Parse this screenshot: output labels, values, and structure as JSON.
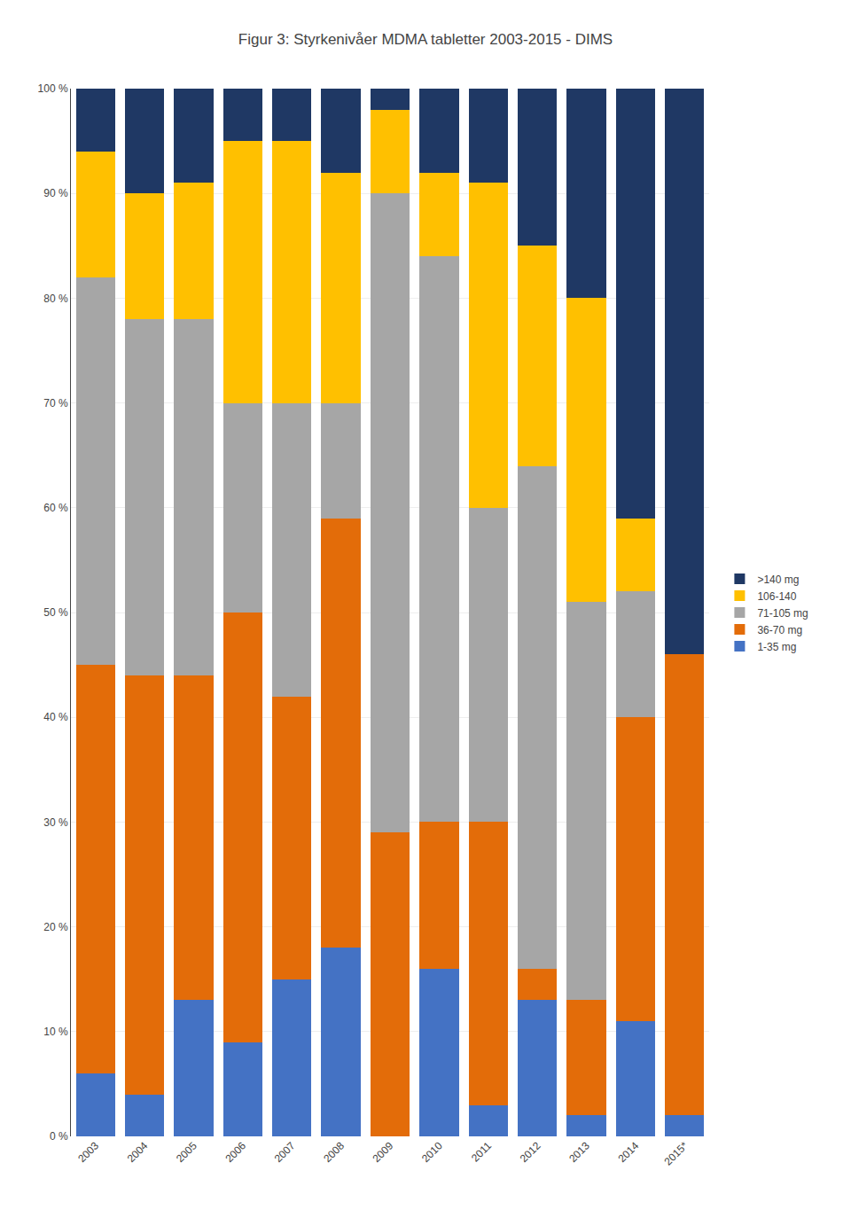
{
  "chart_data": {
    "type": "bar",
    "title": "Figur 3: Styrkenivåer MDMA tabletter 2003-2015 - DIMS",
    "categories": [
      "2003",
      "2004",
      "2005",
      "2006",
      "2007",
      "2008",
      "2009",
      "2010",
      "2011",
      "2012",
      "2013",
      "2014",
      "2015*"
    ],
    "series": [
      {
        "name": "1-35 mg",
        "color": "#4472c4",
        "values": [
          6,
          4,
          13,
          9,
          15,
          18,
          0,
          16,
          3,
          13,
          2,
          11,
          2
        ]
      },
      {
        "name": "36-70 mg",
        "color": "#e36c09",
        "values": [
          39,
          40,
          31,
          41,
          27,
          41,
          29,
          14,
          27,
          3,
          11,
          29,
          44
        ]
      },
      {
        "name": "71-105 mg",
        "color": "#a6a6a6",
        "values": [
          37,
          34,
          34,
          20,
          28,
          11,
          61,
          54,
          30,
          48,
          38,
          12,
          0
        ]
      },
      {
        "name": "106-140",
        "color": "#ffc000",
        "values": [
          12,
          12,
          13,
          25,
          25,
          22,
          8,
          8,
          31,
          21,
          29,
          7,
          0
        ]
      },
      {
        "name": ">140 mg",
        "color": "#1f3864",
        "values": [
          6,
          10,
          9,
          5,
          5,
          8,
          2,
          8,
          9,
          15,
          20,
          41,
          54
        ]
      }
    ],
    "stacked": true,
    "ylim": [
      0,
      100
    ],
    "yticks": [
      {
        "value": 0,
        "label": "0 %"
      },
      {
        "value": 10,
        "label": "10 %"
      },
      {
        "value": 20,
        "label": "20 %"
      },
      {
        "value": 30,
        "label": "30 %"
      },
      {
        "value": 40,
        "label": "40 %"
      },
      {
        "value": 50,
        "label": "50 %"
      },
      {
        "value": 60,
        "label": "60 %"
      },
      {
        "value": 70,
        "label": "70 %"
      },
      {
        "value": 80,
        "label": "80 %"
      },
      {
        "value": 90,
        "label": "90 %"
      },
      {
        "value": 100,
        "label": "100 %"
      }
    ],
    "grid": true,
    "legend": "right"
  }
}
